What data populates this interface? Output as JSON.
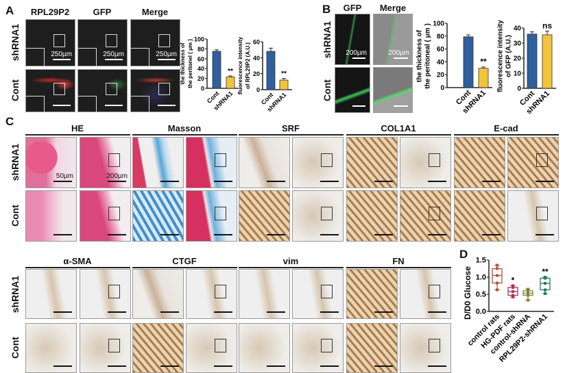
{
  "panels": {
    "A": "A",
    "B": "B",
    "C": "C",
    "D": "D"
  },
  "panel_a": {
    "columns": [
      "RPL29P2",
      "GFP",
      "Merge"
    ],
    "rows": [
      "shRNA1",
      "Cont"
    ],
    "scale_label": "250µm"
  },
  "panel_b": {
    "columns": [
      "GFP",
      "Merge"
    ],
    "rows": [
      "shRNA1",
      "Cont"
    ],
    "scale_label": "200µm"
  },
  "panel_c": {
    "stains_top": [
      "HE",
      "Masson",
      "SRF",
      "COL1A1",
      "E-cad"
    ],
    "stains_bottom": [
      "α-SMA",
      "CTGF",
      "vim",
      "FN"
    ],
    "rows": [
      "shRNA1",
      "Cont"
    ],
    "scale_label_zoom": "50µm",
    "scale_label_overview": "200µm"
  },
  "colors": {
    "cont": "#2e5f9e",
    "shRNA1": "#f2c43c"
  },
  "chart_data": [
    {
      "id": "A1",
      "type": "bar",
      "ylabel": [
        "the thickness of",
        "the peritonel ( μm )"
      ],
      "ylim": [
        0,
        100
      ],
      "yticks": [
        0,
        20,
        40,
        60,
        80,
        100
      ],
      "categories": [
        "Cont",
        "shRNA1"
      ],
      "values": [
        75,
        23
      ],
      "errors": [
        3,
        2
      ],
      "significance": [
        "",
        "**"
      ]
    },
    {
      "id": "A2",
      "type": "bar",
      "ylabel": [
        "fluorescence intensity",
        "of RPL29P2 (A.U.)"
      ],
      "ylim": [
        0,
        60
      ],
      "yticks": [
        0,
        20,
        40,
        60
      ],
      "categories": [
        "Cont",
        "shRNA1"
      ],
      "values": [
        48,
        12
      ],
      "errors": [
        4,
        2
      ],
      "significance": [
        "",
        "**"
      ]
    },
    {
      "id": "B1",
      "type": "bar",
      "ylabel": [
        "the thickness of",
        "the peritoneal ( μm )"
      ],
      "ylim": [
        0,
        100
      ],
      "yticks": [
        0,
        20,
        40,
        60,
        80,
        100
      ],
      "categories": [
        "Cont",
        "shRNA1"
      ],
      "values": [
        79,
        30
      ],
      "errors": [
        3,
        2
      ],
      "significance": [
        "",
        "**"
      ]
    },
    {
      "id": "B2",
      "type": "bar",
      "ylabel": [
        "fluorescence intensity",
        "of GFP (A.U.)"
      ],
      "ylim": [
        0,
        40
      ],
      "yticks": [
        0,
        10,
        20,
        30,
        40
      ],
      "categories": [
        "Cont",
        "shRNA1"
      ],
      "values": [
        36,
        35.5
      ],
      "errors": [
        1.5,
        2.5
      ],
      "significance": [
        "",
        "ns"
      ]
    },
    {
      "id": "D",
      "type": "box",
      "ylabel": [
        "D/D0 Glucose"
      ],
      "ylim": [
        0,
        1.5
      ],
      "yticks": [
        "0.0",
        "0.5",
        "1.0",
        "1.5"
      ],
      "categories": [
        "control rats",
        "HG-PDF rats",
        "control-shRNA",
        "RPL29P2-shRNA1"
      ],
      "series": [
        {
          "min": 0.63,
          "q1": 0.83,
          "median": 1.05,
          "q3": 1.25,
          "max": 1.35,
          "color": "#b5533a",
          "significance": ""
        },
        {
          "min": 0.42,
          "q1": 0.47,
          "median": 0.58,
          "q3": 0.7,
          "max": 0.75,
          "color": "#b0305a",
          "significance": "*"
        },
        {
          "min": 0.33,
          "q1": 0.47,
          "median": 0.53,
          "q3": 0.6,
          "max": 0.65,
          "color": "#7a8a30",
          "significance": ""
        },
        {
          "min": 0.52,
          "q1": 0.63,
          "median": 0.82,
          "q3": 0.97,
          "max": 1.0,
          "color": "#2a7a6a",
          "significance": "**"
        }
      ]
    }
  ]
}
